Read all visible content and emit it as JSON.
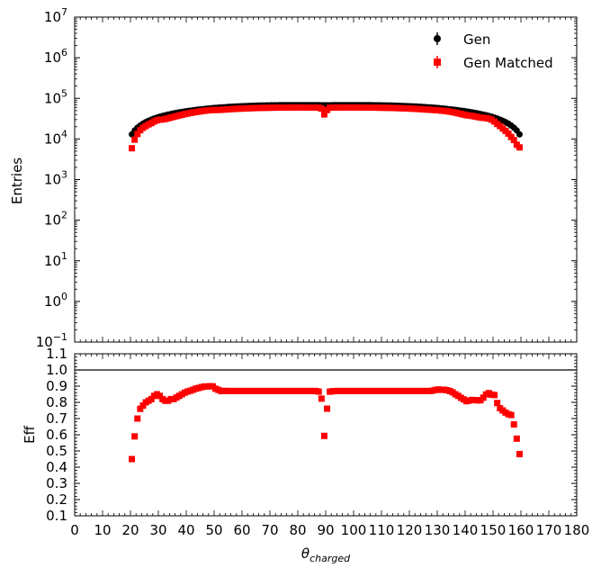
{
  "chart_data": [
    {
      "type": "scatter",
      "panel": "top",
      "xlabel": "",
      "ylabel": "Entries",
      "yscale": "log",
      "ylim": [
        0.1,
        10000000
      ],
      "xlim": [
        0,
        180
      ],
      "ytick_base": "10",
      "ytick_exponents": [
        "−1",
        "0",
        "1",
        "2",
        "3",
        "4",
        "5",
        "6",
        "7"
      ],
      "legend": {
        "placement": "top-right",
        "entries": [
          "Gen",
          "Gen Matched"
        ]
      },
      "colors": {
        "Gen": "#000000",
        "Gen Matched": "#ff0000"
      },
      "series": [
        {
          "name": "Gen",
          "marker": "circle",
          "x": [
            20.5,
            21.5,
            22.5,
            23.5,
            24.5,
            25.5,
            26.5,
            27.5,
            28.5,
            29.5,
            30.5,
            31.5,
            32.5,
            33.5,
            34.5,
            35.5,
            36.5,
            37.5,
            38.5,
            39.5,
            40.5,
            41.5,
            42.5,
            43.5,
            44.5,
            45.5,
            46.5,
            47.5,
            48.5,
            49.5,
            50.5,
            51.5,
            52.5,
            53.5,
            54.5,
            55.5,
            56.5,
            57.5,
            58.5,
            59.5,
            60.5,
            61.5,
            62.5,
            63.5,
            64.5,
            65.5,
            66.5,
            67.5,
            68.5,
            69.5,
            70.5,
            71.5,
            72.5,
            73.5,
            74.5,
            75.5,
            76.5,
            77.5,
            78.5,
            79.5,
            80.5,
            81.5,
            82.5,
            83.5,
            84.5,
            85.5,
            86.5,
            87.5,
            88.5,
            89.5,
            90.5,
            91.5,
            92.5,
            93.5,
            94.5,
            95.5,
            96.5,
            97.5,
            98.5,
            99.5,
            100.5,
            101.5,
            102.5,
            103.5,
            104.5,
            105.5,
            106.5,
            107.5,
            108.5,
            109.5,
            110.5,
            111.5,
            112.5,
            113.5,
            114.5,
            115.5,
            116.5,
            117.5,
            118.5,
            119.5,
            120.5,
            121.5,
            122.5,
            123.5,
            124.5,
            125.5,
            126.5,
            127.5,
            128.5,
            129.5,
            130.5,
            131.5,
            132.5,
            133.5,
            134.5,
            135.5,
            136.5,
            137.5,
            138.5,
            139.5,
            140.5,
            141.5,
            142.5,
            143.5,
            144.5,
            145.5,
            146.5,
            147.5,
            148.5,
            149.5,
            150.5,
            151.5,
            152.5,
            153.5,
            154.5,
            155.5,
            156.5,
            157.5,
            158.5,
            159.5
          ],
          "values": [
            13000,
            16200,
            18900,
            21400,
            23800,
            26000,
            28100,
            30000,
            31900,
            33600,
            35300,
            36900,
            38400,
            39900,
            41300,
            42700,
            44000,
            45300,
            46500,
            47700,
            48800,
            50000,
            51000,
            52100,
            53100,
            54000,
            55000,
            55900,
            56800,
            57600,
            58400,
            59200,
            59900,
            60600,
            61300,
            61900,
            62500,
            63100,
            63600,
            64100,
            64600,
            65000,
            65400,
            65800,
            66100,
            66400,
            66700,
            67000,
            67200,
            67400,
            67600,
            67800,
            67900,
            68000,
            68100,
            68200,
            68300,
            68300,
            68400,
            68400,
            68400,
            68400,
            68400,
            68300,
            68300,
            68200,
            68100,
            68000,
            67900,
            67800,
            67800,
            67900,
            68000,
            68100,
            68200,
            68300,
            68300,
            68400,
            68400,
            68400,
            68400,
            68400,
            68300,
            68300,
            68200,
            68100,
            68000,
            67900,
            67800,
            67600,
            67400,
            67200,
            67000,
            66700,
            66400,
            66100,
            65800,
            65400,
            65000,
            64600,
            64100,
            63600,
            63100,
            62500,
            61900,
            61300,
            60600,
            59900,
            59200,
            58400,
            57600,
            56800,
            55900,
            55000,
            54000,
            53100,
            52100,
            51000,
            50000,
            48800,
            47700,
            46500,
            45300,
            44000,
            42700,
            41300,
            39900,
            38400,
            36900,
            35300,
            33600,
            31900,
            30000,
            28100,
            26000,
            23800,
            21400,
            18900,
            16200,
            13000
          ]
        },
        {
          "name": "Gen Matched",
          "marker": "square",
          "x": [
            20.5,
            21.5,
            22.5,
            23.5,
            24.5,
            25.5,
            26.5,
            27.5,
            28.5,
            29.5,
            30.5,
            31.5,
            32.5,
            33.5,
            34.5,
            35.5,
            36.5,
            37.5,
            38.5,
            39.5,
            40.5,
            41.5,
            42.5,
            43.5,
            44.5,
            45.5,
            46.5,
            47.5,
            48.5,
            49.5,
            50.5,
            51.5,
            52.5,
            53.5,
            54.5,
            55.5,
            56.5,
            57.5,
            58.5,
            59.5,
            60.5,
            61.5,
            62.5,
            63.5,
            64.5,
            65.5,
            66.5,
            67.5,
            68.5,
            69.5,
            70.5,
            71.5,
            72.5,
            73.5,
            74.5,
            75.5,
            76.5,
            77.5,
            78.5,
            79.5,
            80.5,
            81.5,
            82.5,
            83.5,
            84.5,
            85.5,
            86.5,
            87.5,
            88.5,
            89.5,
            90.5,
            91.5,
            92.5,
            93.5,
            94.5,
            95.5,
            96.5,
            97.5,
            98.5,
            99.5,
            100.5,
            101.5,
            102.5,
            103.5,
            104.5,
            105.5,
            106.5,
            107.5,
            108.5,
            109.5,
            110.5,
            111.5,
            112.5,
            113.5,
            114.5,
            115.5,
            116.5,
            117.5,
            118.5,
            119.5,
            120.5,
            121.5,
            122.5,
            123.5,
            124.5,
            125.5,
            126.5,
            127.5,
            128.5,
            129.5,
            130.5,
            131.5,
            132.5,
            133.5,
            134.5,
            135.5,
            136.5,
            137.5,
            138.5,
            139.5,
            140.5,
            141.5,
            142.5,
            143.5,
            144.5,
            145.5,
            146.5,
            147.5,
            148.5,
            149.5,
            150.5,
            151.5,
            152.5,
            153.5,
            154.5,
            155.5,
            156.5,
            157.5,
            158.5,
            159.5
          ],
          "values": [
            5900,
            9600,
            13200,
            16400,
            18800,
            20800,
            22800,
            24600,
            26900,
            28700,
            29800,
            30200,
            31100,
            32200,
            33700,
            35000,
            36500,
            38000,
            39500,
            41000,
            42300,
            43600,
            44800,
            46100,
            47200,
            48300,
            49400,
            50200,
            51100,
            51800,
            51600,
            51900,
            52100,
            52800,
            53300,
            53900,
            54400,
            54900,
            55300,
            55800,
            56200,
            56600,
            56900,
            57200,
            57500,
            57800,
            58000,
            58300,
            58500,
            58600,
            58800,
            59000,
            59100,
            59200,
            59200,
            59300,
            59400,
            59400,
            59500,
            59500,
            59500,
            59500,
            59500,
            59400,
            59400,
            59300,
            59200,
            58900,
            55800,
            40200,
            51600,
            58800,
            59100,
            59300,
            59400,
            59500,
            59500,
            59500,
            59500,
            59500,
            59500,
            59500,
            59400,
            59400,
            59300,
            59200,
            59200,
            59100,
            59000,
            58800,
            58600,
            58500,
            58300,
            58000,
            57800,
            57500,
            57200,
            56900,
            56600,
            56200,
            55800,
            55300,
            54900,
            54400,
            53900,
            53300,
            52800,
            52100,
            51700,
            51200,
            50700,
            49800,
            49100,
            48100,
            47000,
            45800,
            44300,
            42800,
            41400,
            39900,
            38500,
            37700,
            36900,
            35800,
            34700,
            33600,
            33100,
            32600,
            31600,
            29800,
            26800,
            23400,
            20800,
            18100,
            15800,
            13500,
            11200,
            9400,
            7200,
            6200
          ]
        }
      ]
    },
    {
      "type": "scatter",
      "panel": "bottom",
      "xlabel": "θ",
      "xlabel_subscript": "charged",
      "ylabel": "Eff",
      "xlim": [
        0,
        180
      ],
      "ylim": [
        0.1,
        1.1
      ],
      "xticks": [
        "0",
        "10",
        "20",
        "30",
        "40",
        "50",
        "60",
        "70",
        "80",
        "90",
        "100",
        "110",
        "120",
        "130",
        "140",
        "150",
        "160",
        "170",
        "180"
      ],
      "yticks": [
        "0.1",
        "0.2",
        "0.3",
        "0.4",
        "0.5",
        "0.6",
        "0.7",
        "0.8",
        "0.9",
        "1.0",
        "1.1"
      ],
      "reference_line": 1.0,
      "colors": {
        "points": "#ff0000",
        "reference_line": "#000000"
      },
      "series": [
        {
          "name": "",
          "marker": "square",
          "x": [
            20.5,
            21.5,
            22.5,
            23.5,
            24.5,
            25.5,
            26.5,
            27.5,
            28.5,
            29.5,
            30.5,
            31.5,
            32.5,
            33.5,
            34.5,
            35.5,
            36.5,
            37.5,
            38.5,
            39.5,
            40.5,
            41.5,
            42.5,
            43.5,
            44.5,
            45.5,
            46.5,
            47.5,
            48.5,
            49.5,
            50.5,
            51.5,
            52.5,
            53.5,
            54.5,
            55.5,
            56.5,
            57.5,
            58.5,
            59.5,
            60.5,
            61.5,
            62.5,
            63.5,
            64.5,
            65.5,
            66.5,
            67.5,
            68.5,
            69.5,
            70.5,
            71.5,
            72.5,
            73.5,
            74.5,
            75.5,
            76.5,
            77.5,
            78.5,
            79.5,
            80.5,
            81.5,
            82.5,
            83.5,
            84.5,
            85.5,
            86.5,
            87.5,
            88.5,
            89.5,
            90.5,
            91.5,
            92.5,
            93.5,
            94.5,
            95.5,
            96.5,
            97.5,
            98.5,
            99.5,
            100.5,
            101.5,
            102.5,
            103.5,
            104.5,
            105.5,
            106.5,
            107.5,
            108.5,
            109.5,
            110.5,
            111.5,
            112.5,
            113.5,
            114.5,
            115.5,
            116.5,
            117.5,
            118.5,
            119.5,
            120.5,
            121.5,
            122.5,
            123.5,
            124.5,
            125.5,
            126.5,
            127.5,
            128.5,
            129.5,
            130.5,
            131.5,
            132.5,
            133.5,
            134.5,
            135.5,
            136.5,
            137.5,
            138.5,
            139.5,
            140.5,
            141.5,
            142.5,
            143.5,
            144.5,
            145.5,
            146.5,
            147.5,
            148.5,
            149.5,
            150.5,
            151.5,
            152.5,
            153.5,
            154.5,
            155.5,
            156.5,
            157.5,
            158.5,
            159.5
          ],
          "values": [
            0.45,
            0.59,
            0.7,
            0.76,
            0.78,
            0.8,
            0.81,
            0.82,
            0.84,
            0.85,
            0.84,
            0.82,
            0.81,
            0.81,
            0.82,
            0.82,
            0.83,
            0.84,
            0.85,
            0.86,
            0.867,
            0.872,
            0.878,
            0.885,
            0.889,
            0.894,
            0.898,
            0.898,
            0.9,
            0.899,
            0.884,
            0.877,
            0.87,
            0.871,
            0.87,
            0.87,
            0.87,
            0.87,
            0.87,
            0.87,
            0.87,
            0.87,
            0.87,
            0.87,
            0.87,
            0.87,
            0.87,
            0.87,
            0.87,
            0.87,
            0.87,
            0.87,
            0.87,
            0.87,
            0.87,
            0.87,
            0.87,
            0.87,
            0.87,
            0.87,
            0.87,
            0.87,
            0.87,
            0.87,
            0.87,
            0.87,
            0.87,
            0.866,
            0.823,
            0.593,
            0.761,
            0.866,
            0.869,
            0.87,
            0.87,
            0.87,
            0.87,
            0.87,
            0.87,
            0.87,
            0.87,
            0.87,
            0.87,
            0.87,
            0.87,
            0.87,
            0.87,
            0.87,
            0.87,
            0.87,
            0.87,
            0.87,
            0.87,
            0.87,
            0.87,
            0.87,
            0.87,
            0.87,
            0.87,
            0.87,
            0.87,
            0.87,
            0.87,
            0.87,
            0.87,
            0.87,
            0.87,
            0.87,
            0.873,
            0.877,
            0.88,
            0.877,
            0.878,
            0.875,
            0.87,
            0.862,
            0.85,
            0.84,
            0.828,
            0.818,
            0.807,
            0.811,
            0.815,
            0.814,
            0.812,
            0.813,
            0.829,
            0.849,
            0.857,
            0.848,
            0.845,
            0.796,
            0.764,
            0.75,
            0.737,
            0.727,
            0.722,
            0.664,
            0.576,
            0.481
          ]
        }
      ]
    }
  ]
}
